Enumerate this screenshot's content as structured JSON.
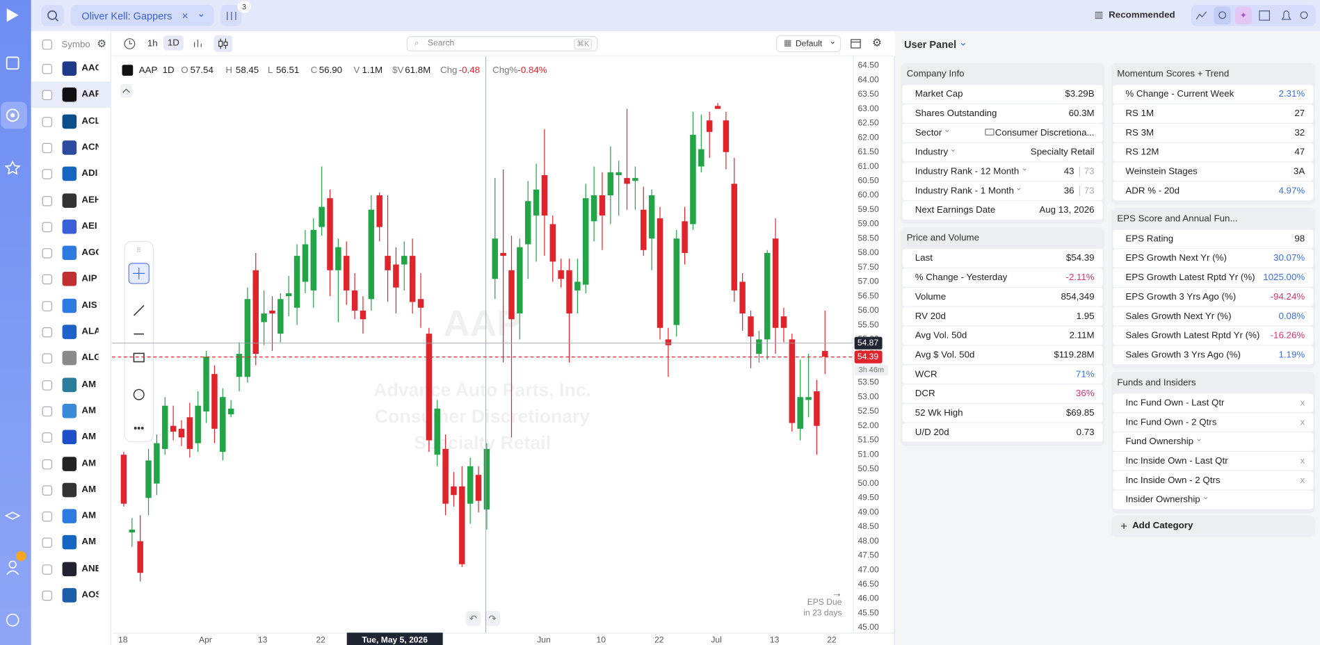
{
  "top_bar": {
    "watchlist": "Oliver Kell: Gappers",
    "filter_count": "3",
    "layout": "Recommended"
  },
  "symbols": {
    "header": "Symbo",
    "items": [
      "AAC",
      "AAP",
      "ACL",
      "ACN",
      "ADI",
      "AEH",
      "AEI",
      "AGC",
      "AIP",
      "AIS",
      "ALA",
      "ALG",
      "AM",
      "AM",
      "AM",
      "AM",
      "AM",
      "AM",
      "AM",
      "ANE",
      "AOS"
    ]
  },
  "toolbar": {
    "intervals": [
      "1h",
      "1D"
    ],
    "search": "Search",
    "shortcut": "⌘K",
    "template": "Default"
  },
  "chart": {
    "symbol": "AAP",
    "interval": "1D",
    "legend": [
      {
        "label": "O",
        "value": "57.54"
      },
      {
        "label": "H",
        "value": "58.45"
      },
      {
        "label": "L",
        "value": "56.51"
      },
      {
        "label": "C",
        "value": "56.90"
      },
      {
        "label": "V",
        "value": "1.1M"
      },
      {
        "label": "$V",
        "value": "61.8M"
      },
      {
        "label": "Chg",
        "value": "-0.48",
        "color": "#e0242b"
      },
      {
        "label": "Chg%",
        "value": "-0.84%",
        "color": "#e0242b"
      }
    ],
    "watermark": {
      "symbol": "AAP",
      "lines": [
        "Advance Auto Parts, Inc.",
        "Consumer Discretionary",
        "Specialty Retail"
      ]
    },
    "up_color": "#22a447",
    "down_color": "#e0242b",
    "ylim": [
      45.0,
      64.5
    ],
    "yticks": [
      {
        "value": 64.5,
        "label": "64.50"
      },
      {
        "value": 64,
        "label": "64.00"
      },
      {
        "value": 63.5,
        "label": "63.50"
      },
      {
        "value": 63,
        "label": "63.00"
      },
      {
        "value": 62.5,
        "label": "62.50"
      },
      {
        "value": 62,
        "label": "62.00"
      },
      {
        "value": 61.5,
        "label": "61.50"
      },
      {
        "value": 61,
        "label": "61.00"
      },
      {
        "value": 60.5,
        "label": "60.50"
      },
      {
        "value": 60,
        "label": "60.00"
      },
      {
        "value": 59.5,
        "label": "59.50"
      },
      {
        "value": 59,
        "label": "59.00"
      },
      {
        "value": 58.5,
        "label": "58.50"
      },
      {
        "value": 58,
        "label": "58.00"
      },
      {
        "value": 57.5,
        "label": "57.50"
      },
      {
        "value": 57,
        "label": "57.00"
      },
      {
        "value": 56.5,
        "label": "56.50"
      },
      {
        "value": 56,
        "label": "56.00"
      },
      {
        "value": 55.5,
        "label": "55.50"
      },
      {
        "value": 55,
        "label": "55.00"
      },
      {
        "value": 54.5,
        "label": "54.50"
      },
      {
        "value": 54,
        "label": "54.00"
      },
      {
        "value": 53.5,
        "label": "53.50"
      },
      {
        "value": 53,
        "label": "53.00"
      },
      {
        "value": 52.5,
        "label": "52.50"
      },
      {
        "value": 52,
        "label": "52.00"
      },
      {
        "value": 51.5,
        "label": "51.50"
      },
      {
        "value": 51,
        "label": "51.00"
      },
      {
        "value": 50.5,
        "label": "50.50"
      },
      {
        "value": 50,
        "label": "50.00"
      },
      {
        "value": 49.5,
        "label": "49.50"
      },
      {
        "value": 49,
        "label": "49.00"
      },
      {
        "value": 48.5,
        "label": "48.50"
      },
      {
        "value": 48,
        "label": "48.00"
      },
      {
        "value": 47.5,
        "label": "47.50"
      },
      {
        "value": 47,
        "label": "47.00"
      },
      {
        "value": 46.5,
        "label": "46.50"
      },
      {
        "value": 46,
        "label": "46.00"
      },
      {
        "value": 45.5,
        "label": "45.50"
      },
      {
        "value": 45,
        "label": "45.00"
      }
    ],
    "crosshair_price": {
      "value": 54.87,
      "label": "54.87"
    },
    "last_price": {
      "value": 54.39,
      "label": "54.39"
    },
    "countdown": "3h 46m",
    "xticks": [
      "18",
      "Apr",
      "13",
      "22",
      "Tue, May 5, 2026",
      "Jun",
      "10",
      "22",
      "Jul",
      "13",
      "22"
    ],
    "eps_due": [
      "EPS Due",
      "in 23 days"
    ],
    "candles": [
      [
        51.0,
        51.1,
        49.2,
        49.3
      ],
      [
        48.3,
        48.8,
        47.8,
        48.4
      ],
      [
        48.0,
        48.9,
        46.6,
        46.9
      ],
      [
        49.5,
        51.2,
        48.9,
        50.8
      ],
      [
        50.0,
        51.7,
        49.6,
        51.4
      ],
      [
        51.2,
        53.0,
        51.0,
        52.7
      ],
      [
        52.0,
        52.7,
        51.5,
        51.8
      ],
      [
        51.9,
        52.2,
        51.3,
        51.6
      ],
      [
        52.3,
        52.8,
        50.9,
        51.2
      ],
      [
        51.4,
        53.2,
        51.1,
        52.7
      ],
      [
        52.5,
        54.6,
        52.1,
        54.4
      ],
      [
        53.8,
        54.1,
        51.4,
        51.9
      ],
      [
        51.1,
        53.3,
        50.8,
        53.0
      ],
      [
        52.4,
        52.9,
        52.3,
        52.6
      ],
      [
        53.7,
        54.9,
        53.2,
        54.5
      ],
      [
        53.7,
        56.8,
        53.5,
        56.4
      ],
      [
        57.4,
        58.0,
        54.1,
        54.5
      ],
      [
        55.6,
        56.7,
        54.8,
        55.9
      ],
      [
        56.0,
        56.5,
        54.6,
        55.9
      ],
      [
        55.2,
        56.6,
        54.9,
        56.4
      ],
      [
        56.5,
        57.2,
        55.8,
        56.6
      ],
      [
        56.1,
        58.3,
        55.5,
        57.9
      ],
      [
        57.0,
        58.8,
        56.6,
        58.3
      ],
      [
        56.7,
        59.2,
        56.1,
        58.8
      ],
      [
        58.9,
        61.0,
        58.6,
        59.6
      ],
      [
        59.9,
        60.2,
        56.5,
        57.4
      ],
      [
        57.4,
        58.5,
        55.6,
        58.2
      ],
      [
        57.9,
        58.4,
        56.2,
        56.7
      ],
      [
        56.7,
        57.3,
        55.7,
        56.0
      ],
      [
        56.0,
        56.5,
        55.2,
        55.7
      ],
      [
        56.4,
        60.0,
        56.0,
        59.5
      ],
      [
        60.0,
        60.1,
        58.4,
        58.9
      ],
      [
        57.9,
        60.0,
        56.3,
        57.4
      ],
      [
        57.6,
        58.2,
        55.9,
        56.8
      ],
      [
        57.6,
        58.4,
        56.7,
        57.9
      ],
      [
        57.9,
        58.5,
        55.9,
        56.3
      ],
      [
        56.4,
        57.3,
        55.4,
        56.1
      ],
      [
        55.2,
        55.4,
        51.1,
        51.5
      ],
      [
        51.0,
        52.9,
        50.6,
        52.6
      ],
      [
        51.2,
        51.7,
        48.9,
        49.3
      ],
      [
        49.9,
        50.4,
        49.2,
        49.6
      ],
      [
        49.9,
        50.6,
        47.1,
        47.2
      ],
      [
        49.3,
        50.9,
        48.6,
        50.6
      ],
      [
        50.3,
        50.6,
        49.0,
        49.4
      ],
      [
        49.1,
        51.4,
        48.4,
        51.2
      ],
      [
        57.1,
        60.6,
        56.4,
        58.5
      ],
      [
        58.0,
        60.9,
        54.2,
        57.9
      ],
      [
        57.4,
        58.6,
        51.6,
        55.7
      ],
      [
        55.9,
        58.5,
        55.0,
        58.2
      ],
      [
        58.3,
        60.5,
        57.1,
        59.8
      ],
      [
        59.3,
        61.1,
        57.7,
        60.2
      ],
      [
        60.7,
        62.3,
        57.9,
        59.3
      ],
      [
        59.0,
        59.3,
        57.0,
        57.7
      ],
      [
        57.4,
        57.8,
        56.8,
        57.1
      ],
      [
        57.4,
        57.8,
        54.2,
        55.9
      ],
      [
        56.7,
        57.8,
        55.9,
        57.0
      ],
      [
        56.9,
        60.4,
        56.6,
        59.9
      ],
      [
        59.1,
        61.0,
        58.4,
        60.0
      ],
      [
        60.0,
        60.8,
        58.1,
        59.3
      ],
      [
        60.0,
        61.7,
        59.0,
        60.8
      ],
      [
        60.7,
        61.2,
        59.3,
        60.8
      ],
      [
        60.6,
        63.0,
        59.5,
        60.4
      ],
      [
        60.5,
        61.0,
        59.5,
        60.6
      ],
      [
        59.5,
        60.3,
        57.9,
        58.1
      ],
      [
        58.5,
        60.2,
        57.4,
        60.0
      ],
      [
        59.2,
        59.6,
        55.0,
        55.4
      ],
      [
        55.0,
        55.4,
        53.7,
        54.8
      ],
      [
        55.5,
        58.8,
        55.1,
        58.5
      ],
      [
        59.1,
        59.6,
        57.6,
        58.0
      ],
      [
        59.0,
        62.9,
        58.8,
        62.1
      ],
      [
        61.0,
        62.8,
        60.8,
        61.6
      ],
      [
        62.6,
        62.9,
        61.3,
        62.2
      ],
      [
        63.1,
        63.2,
        63.0,
        63.0
      ],
      [
        62.6,
        62.9,
        60.9,
        61.5
      ],
      [
        60.4,
        61.3,
        56.3,
        56.7
      ],
      [
        57.0,
        57.3,
        55.3,
        55.9
      ],
      [
        55.8,
        56.0,
        54.0,
        55.1
      ],
      [
        54.5,
        55.3,
        54.2,
        55.0
      ],
      [
        55.0,
        58.1,
        54.3,
        58.0
      ],
      [
        58.5,
        59.2,
        54.5,
        55.4
      ],
      [
        55.8,
        56.1,
        54.9,
        55.4
      ],
      [
        55.0,
        55.2,
        51.8,
        52.1
      ],
      [
        51.9,
        54.3,
        51.5,
        53.0
      ],
      [
        52.9,
        54.5,
        52.3,
        53.0
      ],
      [
        53.2,
        53.6,
        51.0,
        52.0
      ],
      [
        54.6,
        56.0,
        53.8,
        54.4
      ]
    ]
  },
  "panel": {
    "title": "User Panel",
    "add": "Add Category",
    "sections": [
      {
        "title": "Company Info",
        "rows": [
          {
            "label": "Market Cap",
            "value": "$3.29B"
          },
          {
            "label": "Shares Outstanding",
            "value": "60.3M"
          },
          {
            "label": "Sector",
            "dropdown": true,
            "value": "Consumer Discretiona..."
          },
          {
            "label": "Industry",
            "dropdown": true,
            "value": "Specialty Retail"
          },
          {
            "label": "Industry Rank - 12 Month",
            "dropdown": true,
            "value": "43",
            "secondary": "73"
          },
          {
            "label": "Industry Rank - 1 Month",
            "dropdown": true,
            "value": "36",
            "secondary": "73"
          },
          {
            "label": "Next Earnings Date",
            "value": "Aug 13, 2026"
          }
        ]
      },
      {
        "title": "Price and Volume",
        "rows": [
          {
            "label": "Last",
            "value": "$54.39"
          },
          {
            "label": "% Change - Yesterday",
            "value": "-2.11%",
            "color": "#d6336c"
          },
          {
            "label": "Volume",
            "value": "854,349"
          },
          {
            "label": "RV 20d",
            "value": "1.95"
          },
          {
            "label": "Avg Vol. 50d",
            "value": "2.11M"
          },
          {
            "label": "Avg $ Vol. 50d",
            "value": "$119.28M"
          },
          {
            "label": "WCR",
            "value": "71%",
            "color": "#3b6fe0"
          },
          {
            "label": "DCR",
            "value": "36%",
            "color": "#d6336c"
          },
          {
            "label": "52 Wk High",
            "value": "$69.85"
          },
          {
            "label": "U/D 20d",
            "value": "0.73"
          }
        ]
      },
      {
        "title": "Momentum Scores + Trend",
        "rows": [
          {
            "label": "% Change - Current Week",
            "value": "2.31%",
            "color": "#3b6fe0"
          },
          {
            "label": "RS 1M",
            "value": "27"
          },
          {
            "label": "RS 3M",
            "value": "32"
          },
          {
            "label": "RS 12M",
            "value": "47"
          },
          {
            "label": "Weinstein Stages",
            "value": "3A"
          },
          {
            "label": "ADR % - 20d",
            "value": "4.97%",
            "color": "#3b6fe0"
          }
        ]
      },
      {
        "title": "EPS Score and Annual Fun...",
        "rows": [
          {
            "label": "EPS Rating",
            "value": "98"
          },
          {
            "label": "EPS Growth Next Yr (%)",
            "value": "30.07%",
            "color": "#3b6fe0"
          },
          {
            "label": "EPS Growth Latest Rptd Yr (%)",
            "value": "1025.00%",
            "color": "#3b6fe0"
          },
          {
            "label": "EPS Growth 3 Yrs Ago (%)",
            "value": "-94.24%",
            "color": "#d6336c"
          },
          {
            "label": "Sales Growth Next Yr (%)",
            "value": "0.08%",
            "color": "#3b6fe0"
          },
          {
            "label": "Sales Growth Latest Rptd Yr (%)",
            "value": "-16.26%",
            "color": "#d6336c"
          },
          {
            "label": "Sales Growth 3 Yrs Ago (%)",
            "value": "1.19%",
            "color": "#3b6fe0"
          }
        ]
      },
      {
        "title": "Funds and Insiders",
        "rows": [
          {
            "label": "Inc Fund Own - Last Qtr",
            "value": "x",
            "color": "#9aa1ad"
          },
          {
            "label": "Inc Fund Own - 2 Qtrs",
            "value": "x",
            "color": "#9aa1ad"
          },
          {
            "label": "Fund Ownership",
            "dropdown": true
          },
          {
            "label": "Inc Inside Own - Last Qtr",
            "value": "x",
            "color": "#9aa1ad"
          },
          {
            "label": "Inc Inside Own - 2 Qtrs",
            "value": "x",
            "color": "#9aa1ad"
          },
          {
            "label": "Insider Ownership",
            "dropdown": true
          }
        ]
      }
    ]
  }
}
